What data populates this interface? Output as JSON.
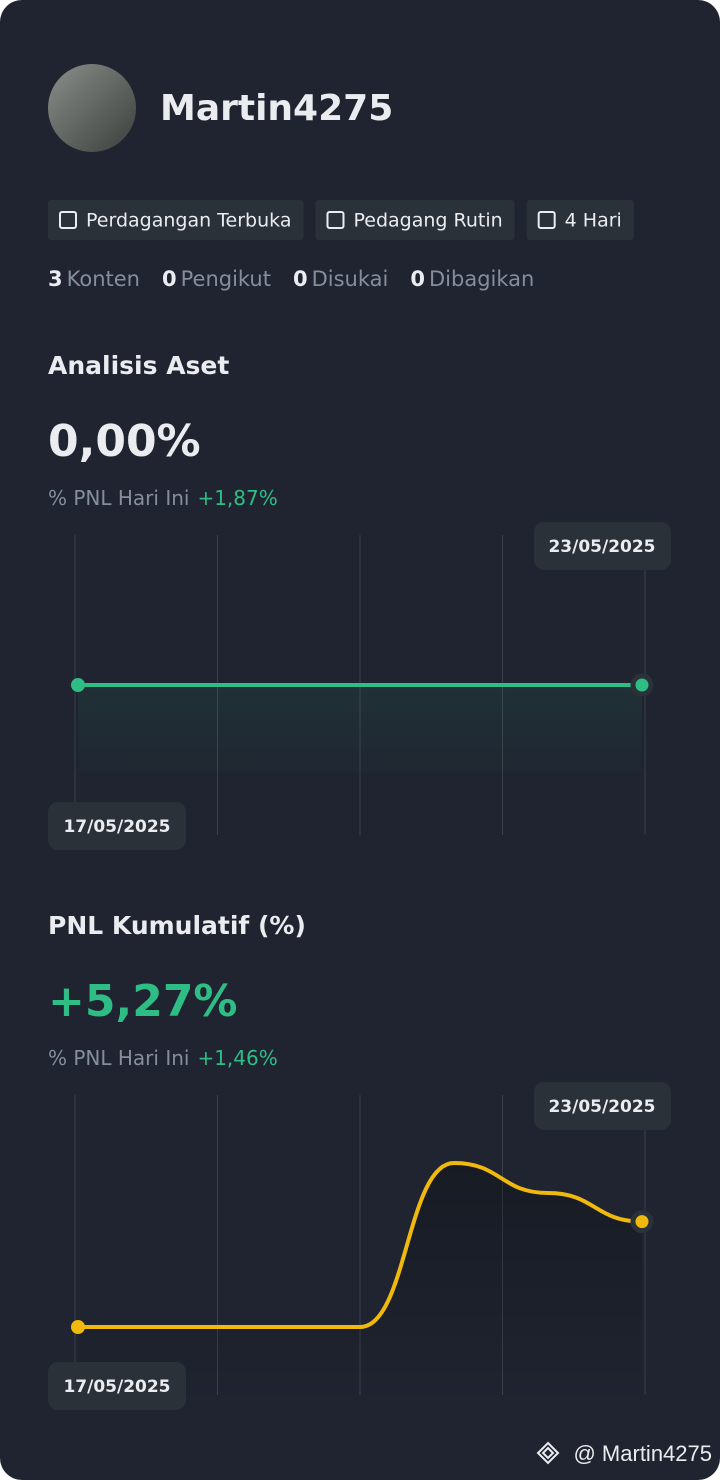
{
  "profile": {
    "name": "Martin4275"
  },
  "badges": [
    "Perdagangan Terbuka",
    "Pedagang Rutin",
    "4 Hari"
  ],
  "stats": [
    {
      "count": 3,
      "label": "Konten"
    },
    {
      "count": 0,
      "label": "Pengikut"
    },
    {
      "count": 0,
      "label": "Disukai"
    },
    {
      "count": 0,
      "label": "Dibagikan"
    }
  ],
  "chart_data": [
    {
      "type": "line",
      "title": "Analisis Aset",
      "headline": "0,00%",
      "headline_color": "#eaecef",
      "subtitle_label": "% PNL Hari Ini",
      "subtitle_value": "+1,87%",
      "categories": [
        "17/05/2025",
        null,
        null,
        null,
        null,
        null,
        "23/05/2025"
      ],
      "series": [
        {
          "color": "#2ebd85",
          "values": [
            0,
            0,
            0,
            0,
            0,
            0,
            0
          ]
        }
      ],
      "ylim": [
        -1,
        1
      ]
    },
    {
      "type": "line",
      "title": "PNL Kumulatif (%)",
      "headline": "+5,27%",
      "headline_color": "#2ebd85",
      "subtitle_label": "% PNL Hari Ini",
      "subtitle_value": "+1,46%",
      "categories": [
        "17/05/2025",
        null,
        null,
        null,
        null,
        null,
        "23/05/2025"
      ],
      "series": [
        {
          "color": "#f0b90b",
          "values": [
            0,
            0,
            0,
            0,
            8.2,
            6.7,
            5.27
          ]
        }
      ],
      "ylim": [
        -3.4,
        11.6
      ]
    }
  ],
  "watermark": "@ Martin4275"
}
